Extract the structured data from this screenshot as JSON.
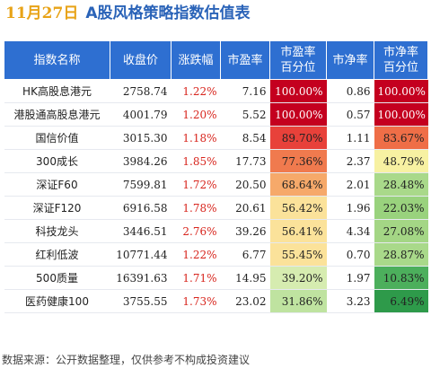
{
  "header": {
    "date": "11月27日",
    "title": "A股风格策略指数估值表"
  },
  "table": {
    "columns": [
      "指数名称",
      "收盘价",
      "涨跌幅",
      "市盈率",
      "市盈率\n百分位",
      "市净率",
      "市净率\n百分位"
    ],
    "rows": [
      {
        "name": "HK高股息港元",
        "close": "2758.74",
        "change": "1.22%",
        "pe": "7.16",
        "pe_pct": "100.00%",
        "pb": "0.86",
        "pb_pct": "100.00%"
      },
      {
        "name": "港股通高股息港元",
        "close": "4001.79",
        "change": "1.20%",
        "pe": "5.52",
        "pe_pct": "100.00%",
        "pb": "0.57",
        "pb_pct": "100.00%"
      },
      {
        "name": "国信价值",
        "close": "3015.30",
        "change": "1.18%",
        "pe": "8.54",
        "pe_pct": "89.70%",
        "pb": "1.11",
        "pb_pct": "83.67%"
      },
      {
        "name": "300成长",
        "close": "3984.26",
        "change": "1.85%",
        "pe": "17.73",
        "pe_pct": "77.36%",
        "pb": "2.37",
        "pb_pct": "48.79%"
      },
      {
        "name": "深证F60",
        "close": "7599.81",
        "change": "1.72%",
        "pe": "20.50",
        "pe_pct": "68.64%",
        "pb": "2.01",
        "pb_pct": "28.48%"
      },
      {
        "name": "深证F120",
        "close": "6916.58",
        "change": "1.78%",
        "pe": "20.61",
        "pe_pct": "56.42%",
        "pb": "1.96",
        "pb_pct": "22.03%"
      },
      {
        "name": "科技龙头",
        "close": "3446.51",
        "change": "2.76%",
        "pe": "39.26",
        "pe_pct": "56.41%",
        "pb": "4.34",
        "pb_pct": "27.08%"
      },
      {
        "name": "红利低波",
        "close": "10771.44",
        "change": "1.22%",
        "pe": "6.77",
        "pe_pct": "55.45%",
        "pb": "0.70",
        "pb_pct": "28.87%"
      },
      {
        "name": "500质量",
        "close": "16391.63",
        "change": "1.71%",
        "pe": "14.95",
        "pe_pct": "39.20%",
        "pb": "1.97",
        "pb_pct": "10.83%"
      },
      {
        "name": "医药健康100",
        "close": "3755.55",
        "change": "1.73%",
        "pe": "23.02",
        "pe_pct": "31.86%",
        "pb": "3.23",
        "pb_pct": "6.49%"
      }
    ],
    "pe_pct_colors": [
      "#c4001f",
      "#c4001f",
      "#e8413a",
      "#f07a4e",
      "#f6a96a",
      "#fbe29a",
      "#fbe29a",
      "#fbe29a",
      "#d6ecb0",
      "#bfe3a0"
    ],
    "pb_pct_colors": [
      "#c4001f",
      "#c4001f",
      "#ef6e47",
      "#f7f1a2",
      "#a9d98a",
      "#99d27d",
      "#a4d685",
      "#a9d98a",
      "#4caf5c",
      "#2e9a4a"
    ],
    "white_text_pe": [
      true,
      true,
      false,
      false,
      false,
      false,
      false,
      false,
      false,
      false
    ],
    "white_text_pb": [
      true,
      true,
      false,
      false,
      false,
      false,
      false,
      false,
      false,
      false
    ]
  },
  "colors": {
    "header_bg": "#2e6fd1",
    "up_red": "#d8261e",
    "title_blue": "#2a63b8",
    "date_orange": "#e8a317"
  },
  "footer": {
    "source": "数据来源：公开数据整理，仅供参考不构成投资建议"
  }
}
